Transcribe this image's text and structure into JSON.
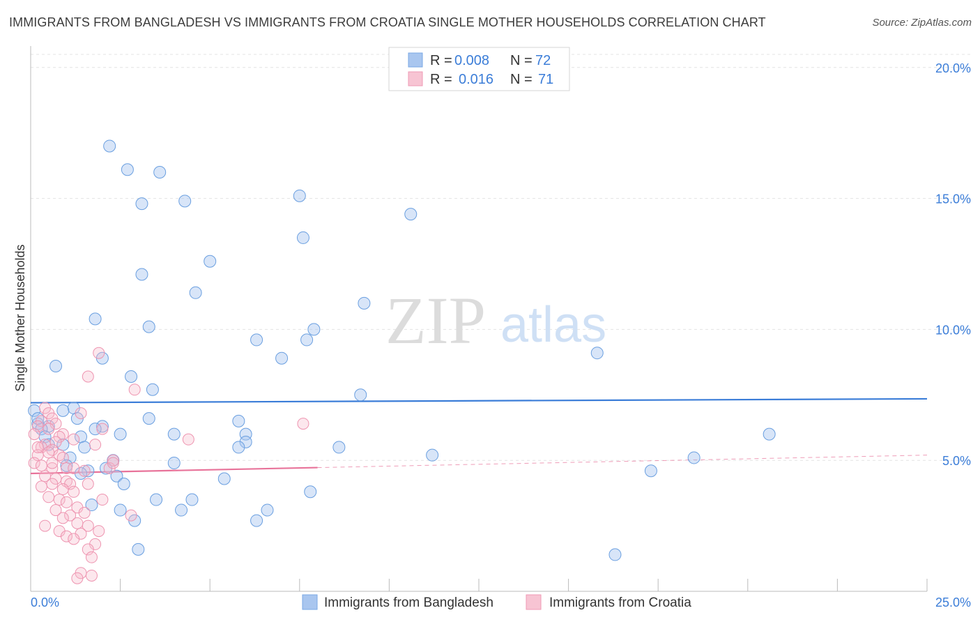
{
  "title": "IMMIGRANTS FROM BANGLADESH VS IMMIGRANTS FROM CROATIA SINGLE MOTHER HOUSEHOLDS CORRELATION CHART",
  "source": "Source: ZipAtlas.com",
  "watermark": {
    "zip": "ZIP",
    "atlas": "atlas"
  },
  "legend": {
    "r_label": "R =",
    "n_label": "N =",
    "rows": [
      {
        "r": "0.008",
        "n": "72"
      },
      {
        "r": "0.016",
        "n": "71"
      }
    ]
  },
  "chart_data": {
    "type": "scatter",
    "title": "IMMIGRANTS FROM BANGLADESH VS IMMIGRANTS FROM CROATIA SINGLE MOTHER HOUSEHOLDS CORRELATION CHART",
    "xlabel": "",
    "ylabel": "Single Mother Households",
    "xlim": [
      0,
      25
    ],
    "ylim": [
      0,
      20.5
    ],
    "x_tick_labels": [
      "0.0%",
      "25.0%"
    ],
    "y_ticks": [
      5,
      10,
      15,
      20
    ],
    "y_tick_labels": [
      "5.0%",
      "10.0%",
      "15.0%",
      "20.0%"
    ],
    "grid": true,
    "legend_position": "top-center",
    "colors": {
      "bangladesh": "#a9c6ef",
      "bangladesh_line": "#3b7dd8",
      "croatia": "#f7b9cc",
      "croatia_line": "#e8739a"
    },
    "series": [
      {
        "name": "Immigrants from Bangladesh",
        "trend": {
          "x0": 0,
          "y0": 7.2,
          "x1": 25,
          "y1": 7.35,
          "solid_to": 25
        },
        "points": [
          [
            2.2,
            17.0
          ],
          [
            2.7,
            16.1
          ],
          [
            3.6,
            16.0
          ],
          [
            3.1,
            14.8
          ],
          [
            4.3,
            14.9
          ],
          [
            7.5,
            15.1
          ],
          [
            10.6,
            14.4
          ],
          [
            7.6,
            13.5
          ],
          [
            5.0,
            12.6
          ],
          [
            3.1,
            12.1
          ],
          [
            4.6,
            11.4
          ],
          [
            9.3,
            11.0
          ],
          [
            1.8,
            10.4
          ],
          [
            3.3,
            10.1
          ],
          [
            7.9,
            10.0
          ],
          [
            6.3,
            9.6
          ],
          [
            7.7,
            9.6
          ],
          [
            15.8,
            9.1
          ],
          [
            7.0,
            8.9
          ],
          [
            2.0,
            8.9
          ],
          [
            0.7,
            8.6
          ],
          [
            2.8,
            8.2
          ],
          [
            3.4,
            7.7
          ],
          [
            9.2,
            7.5
          ],
          [
            1.2,
            7.0
          ],
          [
            0.9,
            6.9
          ],
          [
            0.1,
            6.9
          ],
          [
            1.3,
            6.6
          ],
          [
            3.3,
            6.6
          ],
          [
            5.8,
            6.5
          ],
          [
            0.2,
            6.4
          ],
          [
            0.5,
            6.3
          ],
          [
            0.3,
            6.2
          ],
          [
            2.0,
            6.3
          ],
          [
            2.5,
            6.0
          ],
          [
            4.0,
            6.0
          ],
          [
            6.0,
            6.0
          ],
          [
            20.6,
            6.0
          ],
          [
            0.4,
            5.9
          ],
          [
            1.4,
            5.9
          ],
          [
            6.0,
            5.7
          ],
          [
            0.5,
            5.6
          ],
          [
            0.9,
            5.6
          ],
          [
            5.8,
            5.5
          ],
          [
            8.6,
            5.5
          ],
          [
            1.5,
            5.5
          ],
          [
            11.2,
            5.2
          ],
          [
            18.5,
            5.1
          ],
          [
            2.3,
            5.0
          ],
          [
            1.1,
            5.1
          ],
          [
            4.0,
            4.9
          ],
          [
            1.0,
            4.8
          ],
          [
            2.1,
            4.7
          ],
          [
            1.6,
            4.6
          ],
          [
            1.4,
            4.5
          ],
          [
            17.3,
            4.6
          ],
          [
            2.4,
            4.4
          ],
          [
            2.6,
            4.1
          ],
          [
            5.4,
            4.3
          ],
          [
            7.8,
            3.8
          ],
          [
            3.5,
            3.5
          ],
          [
            4.5,
            3.5
          ],
          [
            1.7,
            3.3
          ],
          [
            2.5,
            3.1
          ],
          [
            4.2,
            3.1
          ],
          [
            6.6,
            3.1
          ],
          [
            2.9,
            2.7
          ],
          [
            6.3,
            2.7
          ],
          [
            3.0,
            1.6
          ],
          [
            16.3,
            1.4
          ],
          [
            0.2,
            6.6
          ],
          [
            1.8,
            6.2
          ]
        ]
      },
      {
        "name": "Immigrants from Croatia",
        "trend": {
          "x0": 0,
          "y0": 4.5,
          "x1": 25,
          "y1": 5.2,
          "solid_to": 8.0
        },
        "points": [
          [
            1.9,
            9.1
          ],
          [
            1.6,
            8.2
          ],
          [
            2.9,
            7.7
          ],
          [
            0.4,
            7.0
          ],
          [
            0.5,
            6.8
          ],
          [
            0.6,
            6.6
          ],
          [
            0.3,
            6.5
          ],
          [
            0.7,
            6.4
          ],
          [
            0.2,
            6.3
          ],
          [
            7.6,
            6.4
          ],
          [
            2.0,
            6.2
          ],
          [
            0.9,
            6.0
          ],
          [
            0.8,
            5.9
          ],
          [
            4.4,
            5.8
          ],
          [
            0.7,
            5.7
          ],
          [
            1.8,
            5.6
          ],
          [
            0.4,
            5.6
          ],
          [
            0.3,
            5.5
          ],
          [
            0.6,
            5.4
          ],
          [
            0.5,
            5.3
          ],
          [
            0.2,
            5.2
          ],
          [
            0.8,
            5.2
          ],
          [
            2.3,
            5.0
          ],
          [
            0.1,
            4.9
          ],
          [
            0.3,
            4.8
          ],
          [
            0.6,
            4.7
          ],
          [
            1.0,
            4.7
          ],
          [
            1.2,
            4.7
          ],
          [
            1.5,
            4.6
          ],
          [
            2.2,
            4.7
          ],
          [
            0.4,
            4.4
          ],
          [
            0.7,
            4.3
          ],
          [
            1.0,
            4.2
          ],
          [
            1.1,
            4.1
          ],
          [
            0.6,
            4.1
          ],
          [
            1.6,
            4.1
          ],
          [
            0.3,
            4.0
          ],
          [
            0.9,
            3.9
          ],
          [
            1.2,
            3.8
          ],
          [
            0.5,
            3.6
          ],
          [
            0.8,
            3.5
          ],
          [
            1.0,
            3.4
          ],
          [
            2.0,
            3.5
          ],
          [
            1.3,
            3.2
          ],
          [
            0.7,
            3.1
          ],
          [
            1.5,
            3.0
          ],
          [
            1.1,
            2.9
          ],
          [
            0.9,
            2.8
          ],
          [
            2.8,
            2.9
          ],
          [
            1.3,
            2.6
          ],
          [
            1.6,
            2.5
          ],
          [
            0.4,
            2.5
          ],
          [
            1.9,
            2.3
          ],
          [
            0.8,
            2.3
          ],
          [
            1.4,
            2.2
          ],
          [
            1.0,
            2.1
          ],
          [
            1.2,
            2.0
          ],
          [
            1.8,
            1.8
          ],
          [
            1.6,
            1.6
          ],
          [
            1.7,
            1.3
          ],
          [
            1.4,
            0.7
          ],
          [
            1.3,
            0.5
          ],
          [
            1.7,
            0.6
          ],
          [
            2.3,
            4.9
          ],
          [
            0.2,
            5.5
          ],
          [
            1.2,
            5.8
          ],
          [
            0.5,
            6.2
          ],
          [
            1.4,
            6.8
          ],
          [
            0.1,
            6.0
          ],
          [
            0.6,
            4.9
          ],
          [
            0.9,
            5.1
          ]
        ]
      }
    ]
  }
}
